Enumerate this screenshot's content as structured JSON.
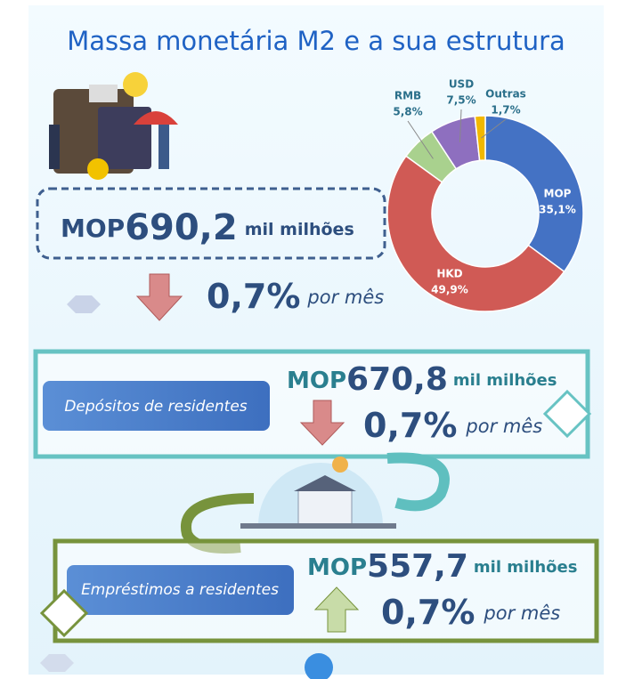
{
  "title": "Massa monetária M2 e a sua estrutura",
  "m2": {
    "currency": "MOP",
    "amount": "690,2",
    "unit": "mil milhões",
    "change": "0,7%",
    "change_unit": "por mês"
  },
  "chart_data": {
    "type": "pie",
    "categories": [
      "MOP",
      "HKD",
      "RMB",
      "USD",
      "Outras"
    ],
    "values": [
      35.1,
      49.9,
      5.8,
      7.5,
      1.7
    ],
    "value_labels": [
      "35,1%",
      "49,9%",
      "5,8%",
      "7,5%",
      "1,7%"
    ],
    "colors": [
      "#4472c4",
      "#d05a55",
      "#a9d18e",
      "#8e6fbf",
      "#f2b800"
    ]
  },
  "deposits": {
    "label": "Depósitos de residentes",
    "currency": "MOP",
    "amount": "670,8",
    "unit": "mil milhões",
    "change": "0,7%",
    "change_unit": "por mês"
  },
  "loans": {
    "label": "Empréstimos a residentes",
    "currency": "MOP",
    "amount": "557,7",
    "unit": "mil milhões",
    "change": "0,7%",
    "change_unit": "por mês"
  }
}
